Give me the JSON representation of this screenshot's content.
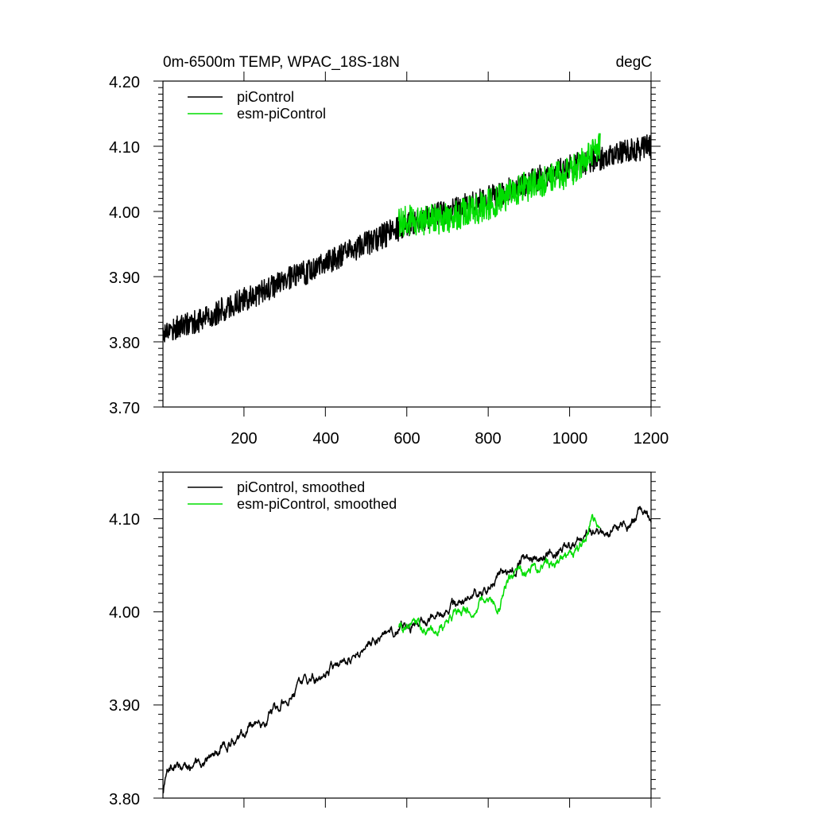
{
  "chart_data": [
    {
      "type": "line",
      "title_left": "0m-6500m TEMP, WPAC_18S-18N",
      "title_right": "degC",
      "xlabel": "",
      "ylabel": "",
      "xlim": [
        1,
        1200
      ],
      "ylim": [
        3.7,
        4.2
      ],
      "xticks": [
        "200",
        "400",
        "600",
        "800",
        "1000",
        "1200"
      ],
      "yticks": [
        "3.70",
        "3.80",
        "3.90",
        "4.00",
        "4.10",
        "4.20"
      ],
      "legend_position": "top-left",
      "series": [
        {
          "name": "piControl",
          "color": "#000000",
          "x_start": 1,
          "x_end": 1200,
          "trend_points": [
            [
              1,
              3.815
            ],
            [
              100,
              3.835
            ],
            [
              200,
              3.865
            ],
            [
              300,
              3.893
            ],
            [
              400,
              3.92
            ],
            [
              500,
              3.95
            ],
            [
              600,
              3.98
            ],
            [
              700,
              4.0
            ],
            [
              800,
              4.02
            ],
            [
              900,
              4.045
            ],
            [
              1000,
              4.07
            ],
            [
              1100,
              4.085
            ],
            [
              1200,
              4.1
            ]
          ],
          "noise_amplitude": 0.012
        },
        {
          "name": "esm-piControl",
          "color": "#00dd00",
          "x_start": 580,
          "x_end": 1075,
          "trend_points": [
            [
              580,
              3.985
            ],
            [
              700,
              3.99
            ],
            [
              800,
              4.01
            ],
            [
              900,
              4.04
            ],
            [
              1000,
              4.06
            ],
            [
              1050,
              4.085
            ],
            [
              1075,
              4.1
            ]
          ],
          "noise_amplitude": 0.015
        }
      ]
    },
    {
      "type": "line",
      "title_left": "",
      "title_right": "",
      "xlabel": "",
      "ylabel": "",
      "xlim": [
        1,
        1200
      ],
      "ylim": [
        3.8,
        4.15
      ],
      "xticks": [],
      "yticks": [
        "3.80",
        "3.90",
        "4.00",
        "4.10"
      ],
      "legend_position": "top-left",
      "series": [
        {
          "name": "piControl, smoothed",
          "color": "#000000",
          "x_start": 1,
          "x_end": 1200,
          "trend_points": [
            [
              1,
              3.805
            ],
            [
              10,
              3.83
            ],
            [
              20,
              3.835
            ],
            [
              50,
              3.825
            ],
            [
              100,
              3.84
            ],
            [
              150,
              3.855
            ],
            [
              200,
              3.87
            ],
            [
              250,
              3.885
            ],
            [
              300,
              3.905
            ],
            [
              350,
              3.92
            ],
            [
              400,
              3.935
            ],
            [
              450,
              3.95
            ],
            [
              500,
              3.965
            ],
            [
              580,
              3.985
            ],
            [
              650,
              3.99
            ],
            [
              700,
              4.0
            ],
            [
              750,
              4.015
            ],
            [
              800,
              4.025
            ],
            [
              850,
              4.045
            ],
            [
              900,
              4.055
            ],
            [
              950,
              4.06
            ],
            [
              1000,
              4.07
            ],
            [
              1050,
              4.085
            ],
            [
              1100,
              4.09
            ],
            [
              1150,
              4.1
            ],
            [
              1190,
              4.112
            ],
            [
              1200,
              4.1
            ]
          ],
          "noise_amplitude": 0.004
        },
        {
          "name": "esm-piControl, smoothed",
          "color": "#00dd00",
          "x_start": 580,
          "x_end": 1075,
          "trend_points": [
            [
              580,
              3.985
            ],
            [
              610,
              3.99
            ],
            [
              650,
              3.98
            ],
            [
              700,
              3.99
            ],
            [
              750,
              4.005
            ],
            [
              800,
              4.015
            ],
            [
              830,
              4.01
            ],
            [
              860,
              4.04
            ],
            [
              900,
              4.045
            ],
            [
              950,
              4.05
            ],
            [
              1000,
              4.06
            ],
            [
              1040,
              4.08
            ],
            [
              1055,
              4.1
            ],
            [
              1070,
              4.095
            ],
            [
              1075,
              4.09
            ]
          ],
          "noise_amplitude": 0.004
        }
      ]
    }
  ]
}
